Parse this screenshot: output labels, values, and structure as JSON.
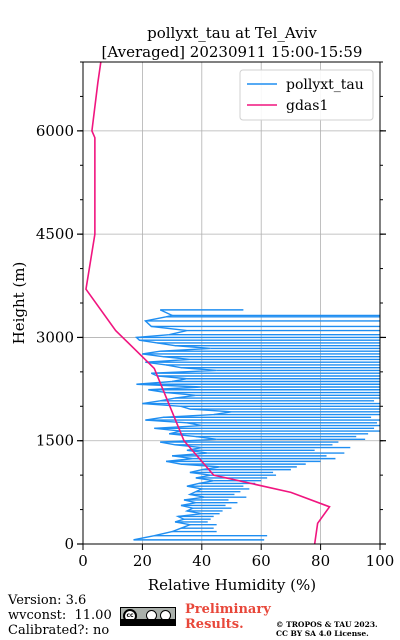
{
  "chart_data": {
    "type": "line",
    "title": "pollyxt_tau at Tel_Aviv",
    "subtitle": "[Averaged] 20230911 15:00-15:59",
    "xlabel": "Relative Humidity (%)",
    "ylabel": "Height (m)",
    "xlim": [
      0,
      100
    ],
    "ylim": [
      0,
      7000
    ],
    "xticks": [
      0,
      20,
      40,
      60,
      80,
      100
    ],
    "yticks": [
      0,
      1500,
      3000,
      4500,
      6000
    ],
    "grid": true,
    "legend_position": "top-right",
    "series": [
      {
        "name": "pollyxt_tau",
        "color": "#1f8ef1",
        "x": [
          17,
          24,
          30,
          33,
          36,
          31,
          34,
          32,
          40,
          35,
          37,
          33,
          38,
          34,
          41,
          36,
          38,
          40,
          35,
          39,
          44,
          38,
          43,
          36,
          40,
          46,
          33,
          28,
          37,
          30,
          42,
          35,
          40,
          31,
          26,
          45,
          38,
          29,
          33,
          24,
          40,
          35,
          21,
          27,
          44,
          50,
          36,
          33,
          20,
          26,
          31,
          38,
          28,
          22,
          40,
          18,
          30,
          35,
          25,
          23,
          45,
          33,
          28,
          21,
          36,
          27,
          20,
          26,
          43,
          31,
          25,
          19,
          18,
          29,
          35,
          23,
          21,
          28,
          30,
          26
        ],
        "y": [
          60,
          120,
          180,
          230,
          280,
          320,
          360,
          400,
          440,
          480,
          520,
          560,
          600,
          640,
          680,
          720,
          760,
          800,
          840,
          880,
          920,
          960,
          1000,
          1040,
          1080,
          1120,
          1160,
          1200,
          1240,
          1280,
          1320,
          1360,
          1400,
          1440,
          1480,
          1520,
          1560,
          1600,
          1640,
          1680,
          1720,
          1760,
          1800,
          1840,
          1880,
          1920,
          1960,
          2000,
          2040,
          2080,
          2120,
          2160,
          2200,
          2240,
          2280,
          2320,
          2360,
          2400,
          2440,
          2480,
          2520,
          2560,
          2600,
          2640,
          2680,
          2720,
          2760,
          2800,
          2840,
          2880,
          2920,
          2960,
          3000,
          3040,
          3100,
          3160,
          3240,
          3300,
          3320,
          3400
        ],
        "x_end": [
          61,
          62,
          45,
          44,
          45,
          42,
          43,
          44,
          46,
          47,
          50,
          48,
          52,
          49,
          55,
          51,
          53,
          56,
          54,
          58,
          60,
          62,
          65,
          64,
          70,
          72,
          75,
          80,
          85,
          82,
          88,
          78,
          90,
          84,
          86,
          95,
          92,
          96,
          100,
          98,
          100,
          99,
          100,
          97,
          100,
          100,
          100,
          100,
          100,
          98,
          100,
          100,
          100,
          100,
          100,
          100,
          100,
          100,
          100,
          100,
          100,
          100,
          100,
          100,
          100,
          100,
          100,
          100,
          100,
          100,
          100,
          100,
          100,
          100,
          100,
          100,
          100,
          100,
          100,
          54
        ]
      },
      {
        "name": "gdas1",
        "color": "#f0157f",
        "x": [
          78,
          79,
          83,
          70,
          44,
          40,
          34,
          24,
          11,
          1,
          4,
          4,
          4,
          3,
          5,
          6
        ],
        "y": [
          0,
          300,
          540,
          750,
          1000,
          1200,
          1500,
          2550,
          3100,
          3700,
          4500,
          5200,
          5900,
          6000,
          6700,
          7000
        ]
      }
    ]
  },
  "footer": {
    "version_label": "Version:",
    "version_value": "3.6",
    "wvconst_label": "wvconst:",
    "wvconst_value": "11.00",
    "calibrated_label": "Calibrated?:",
    "calibrated_value": "no",
    "preliminary_line1": "Preliminary",
    "preliminary_line2": "Results.",
    "copyright_line1": "© TROPOS & TAU 2023.",
    "copyright_line2": "CC BY SA 4.0 License."
  },
  "license_badge": {
    "text": "cc"
  }
}
